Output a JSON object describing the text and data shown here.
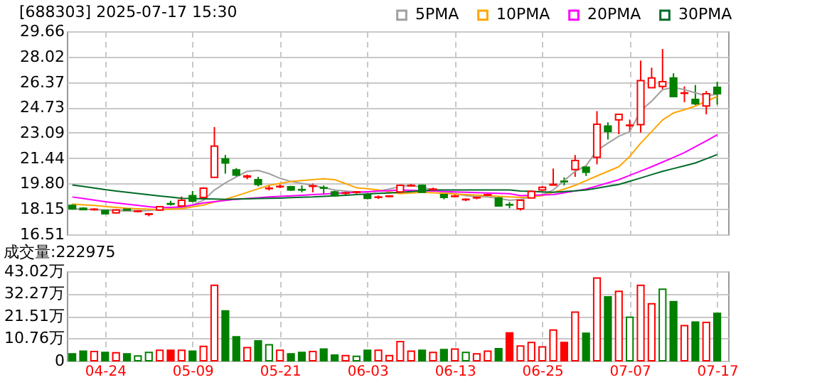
{
  "chart_data": [
    {
      "type": "candlestick",
      "title": "[688303] 2025-07-17 15:30",
      "categories": [
        null,
        null,
        null,
        null,
        null,
        null,
        null,
        null,
        null,
        null,
        null,
        null,
        null,
        null,
        null,
        null,
        null,
        null,
        null,
        null,
        null,
        null,
        null,
        null,
        null,
        null,
        null,
        null,
        null,
        null,
        null,
        null,
        null,
        null,
        null,
        null,
        null,
        null,
        null,
        null,
        null,
        null,
        null,
        null,
        null,
        null,
        null,
        null,
        null,
        null,
        null,
        null,
        null,
        null,
        null,
        null,
        null,
        null,
        null,
        null
      ],
      "ohlc": [
        [
          18.38,
          18.47,
          18.11,
          18.17
        ],
        [
          18.2,
          18.26,
          18.08,
          18.11
        ],
        [
          18.11,
          18.2,
          18.05,
          18.14
        ],
        [
          18.05,
          18.11,
          17.82,
          17.84
        ],
        [
          17.9,
          18.14,
          17.84,
          18.08
        ],
        [
          18.14,
          18.2,
          18.02,
          18.08
        ],
        [
          17.99,
          18.08,
          17.93,
          18.02
        ],
        [
          17.8,
          17.9,
          17.68,
          17.84
        ],
        [
          18.08,
          18.35,
          18.02,
          18.3
        ],
        [
          18.5,
          18.68,
          18.38,
          18.46
        ],
        [
          18.35,
          18.96,
          18.3,
          18.72
        ],
        [
          19.02,
          19.32,
          18.6,
          18.66
        ],
        [
          18.9,
          19.56,
          18.85,
          19.5
        ],
        [
          20.2,
          23.46,
          20.2,
          22.22
        ],
        [
          21.4,
          21.65,
          20.44,
          21.13
        ],
        [
          20.68,
          20.8,
          20.23,
          20.35
        ],
        [
          20.22,
          20.38,
          20.08,
          20.29
        ],
        [
          20.05,
          20.23,
          19.62,
          19.74
        ],
        [
          19.47,
          19.65,
          19.35,
          19.5
        ],
        [
          19.59,
          19.74,
          19.5,
          19.62
        ],
        [
          19.59,
          19.65,
          19.32,
          19.38
        ],
        [
          19.41,
          19.68,
          19.23,
          19.38
        ],
        [
          19.62,
          19.8,
          19.23,
          19.65
        ],
        [
          19.53,
          19.68,
          19.08,
          19.5
        ],
        [
          19.26,
          19.35,
          18.96,
          19.02
        ],
        [
          19.17,
          19.29,
          19.08,
          19.2
        ],
        [
          19.23,
          19.32,
          19.14,
          19.26
        ],
        [
          19.05,
          19.14,
          18.78,
          18.84
        ],
        [
          18.9,
          19.02,
          18.81,
          18.93
        ],
        [
          18.96,
          19.05,
          18.9,
          18.99
        ],
        [
          19.26,
          19.74,
          19.2,
          19.68
        ],
        [
          19.65,
          19.77,
          19.59,
          19.68
        ],
        [
          19.68,
          19.74,
          19.2,
          19.23
        ],
        [
          19.41,
          19.53,
          19.35,
          19.44
        ],
        [
          19.08,
          19.14,
          18.78,
          18.9
        ],
        [
          18.96,
          19.08,
          18.9,
          18.99
        ],
        [
          18.75,
          18.84,
          18.66,
          18.78
        ],
        [
          18.87,
          18.99,
          18.78,
          18.9
        ],
        [
          19.05,
          19.14,
          18.96,
          19.08
        ],
        [
          18.87,
          18.93,
          18.3,
          18.35
        ],
        [
          18.44,
          18.6,
          18.2,
          18.41
        ],
        [
          18.17,
          18.72,
          18.05,
          18.72
        ],
        [
          18.87,
          19.35,
          18.84,
          19.29
        ],
        [
          19.38,
          19.62,
          19.32,
          19.56
        ],
        [
          19.7,
          20.77,
          19.68,
          19.75
        ],
        [
          19.95,
          20.2,
          19.68,
          19.92
        ],
        [
          20.71,
          21.65,
          20.23,
          21.29
        ],
        [
          20.86,
          20.95,
          20.29,
          20.53
        ],
        [
          21.5,
          24.49,
          21.04,
          23.64
        ],
        [
          23.52,
          23.76,
          22.65,
          23.16
        ],
        [
          23.92,
          24.28,
          22.99,
          24.28
        ],
        [
          23.55,
          23.94,
          23.16,
          23.58
        ],
        [
          23.61,
          27.76,
          23.1,
          26.46
        ],
        [
          26.0,
          27.3,
          26.0,
          26.64
        ],
        [
          26.09,
          28.51,
          25.88,
          26.39
        ],
        [
          26.64,
          26.94,
          25.43,
          25.43
        ],
        [
          25.64,
          26.09,
          25.07,
          25.67
        ],
        [
          25.25,
          26.18,
          24.88,
          24.97
        ],
        [
          24.82,
          25.79,
          24.28,
          25.61
        ],
        [
          26.03,
          26.39,
          24.91,
          25.61
        ]
      ],
      "colors": [
        "#008000",
        "#008000",
        "#ff0000",
        "#008000",
        "#ff0000",
        "#008000",
        "#ff0000",
        "#ff0000",
        "#ff0000",
        "#008000",
        "#ff0000",
        "#008000",
        "#ff0000",
        "#ff0000",
        "#008000",
        "#008000",
        "#ff0000",
        "#008000",
        "#ff0000",
        "#ff0000",
        "#008000",
        "#008000",
        "#ff0000",
        "#008000",
        "#008000",
        "#ff0000",
        "#ff0000",
        "#008000",
        "#ff0000",
        "#ff0000",
        "#ff0000",
        "#ff0000",
        "#008000",
        "#ff0000",
        "#008000",
        "#ff0000",
        "#ff0000",
        "#ff0000",
        "#ff0000",
        "#008000",
        "#008000",
        "#ff0000",
        "#ff0000",
        "#ff0000",
        "#ff0000",
        "#008000",
        "#ff0000",
        "#008000",
        "#ff0000",
        "#008000",
        "#ff0000",
        "#ff0000",
        "#ff0000",
        "#ff0000",
        "#ff0000",
        "#008000",
        "#ff0000",
        "#008000",
        "#ff0000",
        "#008000"
      ],
      "series": [
        {
          "name": "5PMA",
          "type": "line",
          "color": "#a0a0a0",
          "values": [
            18.17,
            18.14,
            18.11,
            18.08,
            18.05,
            18.02,
            18.02,
            18.05,
            18.11,
            18.17,
            18.23,
            18.41,
            18.72,
            19.38,
            19.84,
            20.23,
            20.59,
            20.65,
            20.44,
            20.14,
            19.93,
            19.81,
            19.68,
            19.53,
            19.38,
            19.32,
            19.26,
            19.23,
            19.32,
            19.44,
            19.62,
            19.68,
            19.56,
            19.38,
            19.23,
            19.14,
            19.02,
            18.96,
            18.93,
            18.84,
            18.72,
            18.78,
            18.93,
            19.08,
            19.38,
            19.99,
            20.59,
            20.95,
            21.95,
            22.41,
            22.86,
            23.16,
            24.52,
            25.13,
            25.88,
            26.03,
            25.88,
            25.67,
            25.49,
            25.58
          ]
        },
        {
          "name": "10PMA",
          "type": "line",
          "color": "#ffa500",
          "values": [
            18.47,
            18.42,
            18.38,
            18.32,
            18.26,
            18.2,
            18.17,
            18.14,
            18.11,
            18.14,
            18.17,
            18.29,
            18.41,
            18.6,
            18.78,
            19.0,
            19.23,
            19.46,
            19.68,
            19.81,
            19.93,
            19.99,
            20.05,
            20.11,
            20.05,
            19.8,
            19.53,
            19.46,
            19.38,
            19.26,
            19.14,
            19.19,
            19.23,
            19.2,
            19.17,
            19.12,
            19.08,
            19.05,
            19.02,
            18.97,
            18.93,
            18.9,
            18.93,
            19.02,
            19.23,
            19.44,
            19.68,
            19.99,
            20.29,
            20.59,
            20.89,
            21.56,
            22.41,
            23.16,
            23.92,
            24.37,
            24.58,
            24.82,
            25.13,
            25.43
          ]
        },
        {
          "name": "20PMA",
          "type": "line",
          "color": "#ff00ff",
          "values": [
            18.93,
            18.83,
            18.73,
            18.63,
            18.54,
            18.46,
            18.38,
            18.3,
            18.23,
            18.26,
            18.29,
            18.41,
            18.54,
            18.62,
            18.7,
            18.78,
            18.83,
            18.88,
            18.93,
            18.97,
            19.0,
            19.04,
            19.08,
            19.12,
            19.16,
            19.2,
            19.23,
            19.27,
            19.31,
            19.34,
            19.38,
            19.36,
            19.34,
            19.32,
            19.29,
            19.26,
            19.23,
            19.21,
            19.19,
            19.17,
            19.14,
            19.02,
            19.04,
            19.06,
            19.08,
            19.2,
            19.32,
            19.44,
            19.64,
            19.84,
            20.05,
            20.33,
            20.61,
            20.89,
            21.19,
            21.49,
            21.8,
            22.18,
            22.56,
            22.95
          ]
        },
        {
          "name": "30PMA",
          "type": "line",
          "color": "#006a28",
          "values": [
            19.71,
            19.61,
            19.51,
            19.41,
            19.32,
            19.23,
            19.15,
            19.07,
            18.99,
            18.92,
            18.84,
            18.83,
            18.81,
            18.8,
            18.78,
            18.8,
            18.81,
            18.83,
            18.84,
            18.86,
            18.89,
            18.91,
            18.93,
            18.97,
            19.0,
            19.04,
            19.08,
            19.12,
            19.16,
            19.19,
            19.23,
            19.28,
            19.33,
            19.38,
            19.38,
            19.38,
            19.38,
            19.38,
            19.38,
            19.38,
            19.38,
            19.32,
            19.29,
            19.26,
            19.23,
            19.28,
            19.33,
            19.38,
            19.5,
            19.62,
            19.74,
            19.95,
            20.16,
            20.38,
            20.59,
            20.77,
            20.95,
            21.13,
            21.4,
            21.68
          ]
        }
      ],
      "ylim": [
        16.51,
        29.66
      ],
      "yticks": [
        16.51,
        18.15,
        {
          "value": 19.8,
          "label": "19.80"
        },
        21.44,
        23.09,
        24.73,
        26.37,
        28.02,
        29.66
      ],
      "grid": true,
      "legend": "top right",
      "tick_labels": "y"
    },
    {
      "type": "bar",
      "title": "成交量:222975",
      "categories": [
        null,
        null,
        null,
        "04-24",
        null,
        null,
        null,
        null,
        null,
        null,
        null,
        "05-09",
        null,
        null,
        null,
        null,
        null,
        null,
        null,
        "05-21",
        null,
        null,
        null,
        null,
        null,
        null,
        null,
        "06-03",
        null,
        null,
        null,
        null,
        null,
        null,
        null,
        "06-13",
        null,
        null,
        null,
        null,
        null,
        null,
        null,
        "06-25",
        null,
        null,
        null,
        null,
        null,
        null,
        null,
        "07-07",
        null,
        null,
        null,
        null,
        null,
        null,
        null,
        "07-17"
      ],
      "values": [
        3.3,
        4.6,
        4.4,
        4.0,
        3.8,
        3.3,
        2.3,
        4.0,
        5.0,
        5.0,
        5.0,
        4.6,
        6.9,
        36.3,
        24.0,
        11.5,
        6.3,
        9.6,
        7.7,
        5.0,
        3.3,
        4.0,
        4.4,
        5.6,
        2.7,
        2.5,
        2.1,
        5.0,
        5.0,
        2.5,
        9.2,
        4.6,
        5.0,
        4.0,
        5.4,
        5.6,
        4.0,
        3.3,
        4.6,
        5.8,
        13.4,
        7.1,
        8.8,
        6.7,
        14.8,
        8.8,
        23.4,
        13.2,
        39.8,
        30.7,
        33.4,
        20.9,
        36.3,
        27.4,
        34.4,
        28.4,
        16.9,
        18.6,
        18.4,
        22.8
      ],
      "colors": [
        "#008000",
        "#008000",
        "#ff0000",
        "#008000",
        "#ff0000",
        "#008000",
        "#008000",
        "#008000",
        "#ff0000",
        "#ff0000",
        "#ff0000",
        "#008000",
        "#ff0000",
        "#ff0000",
        "#008000",
        "#008000",
        "#ff0000",
        "#008000",
        "#008000",
        "#ff0000",
        "#008000",
        "#008000",
        "#ff0000",
        "#008000",
        "#008000",
        "#ff0000",
        "#008000",
        "#008000",
        "#ff0000",
        "#ff0000",
        "#ff0000",
        "#ff0000",
        "#008000",
        "#ff0000",
        "#008000",
        "#ff0000",
        "#008000",
        "#ff0000",
        "#ff0000",
        "#008000",
        "#ff0000",
        "#ff0000",
        "#ff0000",
        "#ff0000",
        "#ff0000",
        "#ff0000",
        "#ff0000",
        "#008000",
        "#ff0000",
        "#008000",
        "#ff0000",
        "#008000",
        "#ff0000",
        "#ff0000",
        "#008000",
        "#008000",
        "#ff0000",
        "#008000",
        "#ff0000",
        "#008000"
      ],
      "ylim": [
        0,
        43.02
      ],
      "yticks": [
        0,
        {
          "value": 10.76,
          "label": "10.76万"
        },
        {
          "value": 21.51,
          "label": "21.51万"
        },
        {
          "value": 32.27,
          "label": "32.27万"
        },
        {
          "value": 43.02,
          "label": "43.02万"
        }
      ],
      "grid": true
    }
  ]
}
